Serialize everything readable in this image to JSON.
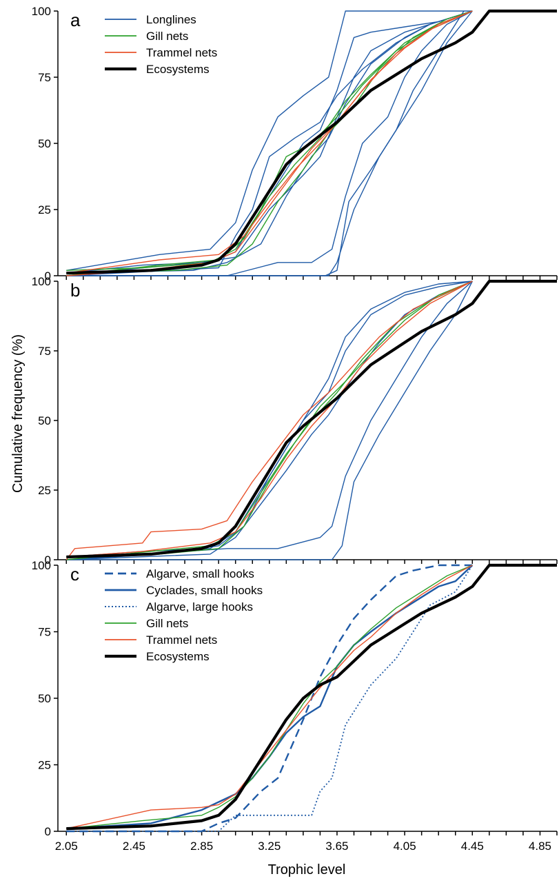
{
  "figure": {
    "ylabel": "Cumulative frequency (%)",
    "xlabel": "Trophic level",
    "x_ticks": [
      "2.05",
      "2.45",
      "2.85",
      "3.25",
      "3.65",
      "4.05",
      "4.45",
      "4.85"
    ]
  },
  "colors": {
    "longlines": "#1f5aa6",
    "gill_nets": "#2ca02c",
    "trammel_nets": "#e8522c",
    "ecosystems": "#000000"
  },
  "chart_data": [
    {
      "type": "line",
      "panel": "a",
      "xlim": [
        2.0,
        4.95
      ],
      "ylim": [
        0,
        100
      ],
      "yticks": [
        "0",
        "25",
        "50",
        "75",
        "100"
      ],
      "legend": [
        "Longlines",
        "Gill nets",
        "Trammel nets",
        "Ecosystems"
      ],
      "legend_position": "top-left",
      "series": [
        {
          "name": "Longlines",
          "style": "thin-blue",
          "x": [
            2.05,
            2.5,
            2.9,
            3.05,
            3.15,
            3.25,
            3.35,
            3.45,
            3.55,
            3.65,
            3.75,
            3.85,
            4.05,
            4.25,
            4.45
          ],
          "y": [
            1,
            4,
            5,
            9,
            20,
            30,
            40,
            50,
            55,
            70,
            90,
            92,
            94,
            96,
            100
          ]
        },
        {
          "name": "Longlines",
          "style": "thin-blue",
          "x": [
            2.05,
            2.5,
            2.85,
            3.05,
            3.25,
            3.45,
            3.55,
            3.65,
            3.75,
            3.85,
            4.05,
            4.25,
            4.45
          ],
          "y": [
            0,
            3,
            5,
            7,
            25,
            38,
            45,
            60,
            75,
            85,
            92,
            96,
            100
          ]
        },
        {
          "name": "Longlines",
          "style": "thin-blue",
          "x": [
            2.05,
            2.6,
            2.9,
            3.05,
            3.15,
            3.3,
            3.45,
            3.6,
            3.7,
            3.85,
            4.05,
            4.25,
            4.45
          ],
          "y": [
            2,
            8,
            10,
            20,
            40,
            60,
            68,
            75,
            100,
            100,
            100,
            100,
            100
          ]
        },
        {
          "name": "Longlines",
          "style": "thin-blue",
          "x": [
            2.05,
            2.8,
            3.0,
            3.2,
            3.35,
            3.5,
            3.6,
            3.7,
            3.85,
            4.05,
            4.2,
            4.45
          ],
          "y": [
            1,
            2,
            5,
            12,
            30,
            45,
            52,
            65,
            80,
            90,
            95,
            100
          ]
        },
        {
          "name": "Longlines",
          "style": "thin-blue",
          "x": [
            2.05,
            3.0,
            3.3,
            3.5,
            3.62,
            3.7,
            3.8,
            3.95,
            4.05,
            4.15,
            4.3,
            4.45
          ],
          "y": [
            0,
            0,
            5,
            5,
            10,
            30,
            50,
            60,
            75,
            85,
            95,
            100
          ]
        },
        {
          "name": "Longlines",
          "style": "thin-blue",
          "x": [
            2.05,
            3.1,
            3.4,
            3.6,
            3.65,
            3.75,
            3.9,
            4.0,
            4.1,
            4.25,
            4.4
          ],
          "y": [
            0,
            0,
            0,
            0,
            5,
            25,
            45,
            55,
            70,
            85,
            100
          ]
        },
        {
          "name": "Longlines",
          "style": "thin-blue",
          "x": [
            2.05,
            3.35,
            3.58,
            3.65,
            3.72,
            3.85,
            4.0,
            4.15,
            4.3,
            4.45
          ],
          "y": [
            0,
            0,
            0,
            2,
            28,
            40,
            55,
            70,
            88,
            100
          ]
        },
        {
          "name": "Longlines",
          "style": "thin-blue",
          "x": [
            2.05,
            2.95,
            3.05,
            3.15,
            3.25,
            3.4,
            3.55,
            3.65,
            3.8,
            4.0,
            4.2,
            4.45
          ],
          "y": [
            0,
            3,
            15,
            25,
            45,
            52,
            58,
            68,
            78,
            88,
            95,
            100
          ]
        },
        {
          "name": "Gill nets",
          "style": "thin-green",
          "x": [
            2.05,
            2.5,
            2.9,
            3.05,
            3.2,
            3.35,
            3.5,
            3.65,
            3.8,
            4.0,
            4.2,
            4.45
          ],
          "y": [
            2,
            3,
            5,
            10,
            25,
            45,
            50,
            60,
            72,
            85,
            93,
            100
          ]
        },
        {
          "name": "Gill nets",
          "style": "thin-green",
          "x": [
            2.05,
            2.6,
            2.95,
            3.1,
            3.25,
            3.4,
            3.55,
            3.7,
            3.85,
            4.05,
            4.25,
            4.45
          ],
          "y": [
            0,
            4,
            6,
            14,
            30,
            42,
            52,
            66,
            76,
            88,
            95,
            100
          ]
        },
        {
          "name": "Gill nets",
          "style": "thin-green",
          "x": [
            2.05,
            2.7,
            3.0,
            3.15,
            3.3,
            3.45,
            3.6,
            3.75,
            3.9,
            4.1,
            4.3,
            4.45
          ],
          "y": [
            1,
            2,
            4,
            12,
            28,
            40,
            54,
            64,
            78,
            90,
            97,
            100
          ]
        },
        {
          "name": "Trammel nets",
          "style": "thin-red",
          "x": [
            2.05,
            2.5,
            2.9,
            3.05,
            3.2,
            3.35,
            3.5,
            3.65,
            3.8,
            4.0,
            4.2,
            4.45
          ],
          "y": [
            0,
            2,
            5,
            9,
            22,
            35,
            48,
            58,
            70,
            84,
            93,
            100
          ]
        },
        {
          "name": "Trammel nets",
          "style": "thin-red",
          "x": [
            2.05,
            2.6,
            2.95,
            3.1,
            3.25,
            3.4,
            3.55,
            3.7,
            3.85,
            4.05,
            4.25,
            4.45
          ],
          "y": [
            1,
            6,
            8,
            15,
            28,
            40,
            50,
            62,
            74,
            86,
            95,
            100
          ]
        },
        {
          "name": "Ecosystems",
          "style": "thick-black",
          "x": [
            2.05,
            2.55,
            2.85,
            2.95,
            3.05,
            3.15,
            3.25,
            3.35,
            3.45,
            3.55,
            3.65,
            3.75,
            3.85,
            3.95,
            4.05,
            4.15,
            4.25,
            4.35,
            4.45,
            4.55,
            4.85,
            4.95
          ],
          "y": [
            1,
            2,
            4,
            6,
            12,
            22,
            32,
            42,
            48,
            53,
            58,
            64,
            70,
            74,
            78,
            82,
            85,
            88,
            92,
            100,
            100,
            100
          ]
        }
      ]
    },
    {
      "type": "line",
      "panel": "b",
      "xlim": [
        2.0,
        4.95
      ],
      "ylim": [
        0,
        100
      ],
      "yticks": [
        "0",
        "25",
        "50",
        "75",
        "100"
      ],
      "series": [
        {
          "name": "Longlines",
          "style": "thin-blue",
          "x": [
            2.05,
            2.5,
            2.9,
            3.05,
            3.2,
            3.35,
            3.5,
            3.6,
            3.7,
            3.85,
            4.05,
            4.25,
            4.45
          ],
          "y": [
            1,
            3,
            4,
            10,
            25,
            40,
            55,
            65,
            80,
            90,
            96,
            99,
            100
          ]
        },
        {
          "name": "Longlines",
          "style": "thin-blue",
          "x": [
            2.05,
            2.6,
            2.95,
            3.1,
            3.25,
            3.45,
            3.6,
            3.7,
            3.85,
            4.05,
            4.25,
            4.45
          ],
          "y": [
            0,
            2,
            5,
            12,
            30,
            50,
            60,
            75,
            88,
            95,
            98,
            100
          ]
        },
        {
          "name": "Longlines",
          "style": "thin-blue",
          "x": [
            2.05,
            3.0,
            3.3,
            3.55,
            3.62,
            3.7,
            3.85,
            4.0,
            4.15,
            4.3,
            4.45
          ],
          "y": [
            0,
            4,
            4,
            8,
            12,
            30,
            50,
            65,
            80,
            92,
            100
          ]
        },
        {
          "name": "Longlines",
          "style": "thin-blue",
          "x": [
            2.05,
            3.1,
            3.5,
            3.62,
            3.68,
            3.75,
            3.9,
            4.05,
            4.2,
            4.35,
            4.45
          ],
          "y": [
            0,
            0,
            0,
            0,
            5,
            28,
            45,
            60,
            75,
            88,
            100
          ]
        },
        {
          "name": "Longlines",
          "style": "thin-blue",
          "x": [
            2.05,
            2.9,
            3.05,
            3.2,
            3.35,
            3.5,
            3.6,
            3.75,
            3.9,
            4.05,
            4.25,
            4.45
          ],
          "y": [
            0,
            2,
            8,
            20,
            32,
            45,
            52,
            66,
            78,
            88,
            95,
            100
          ]
        },
        {
          "name": "Gill nets",
          "style": "thin-green",
          "x": [
            2.05,
            2.55,
            2.9,
            3.05,
            3.2,
            3.35,
            3.5,
            3.65,
            3.8,
            4.0,
            4.2,
            4.45
          ],
          "y": [
            0,
            3,
            5,
            10,
            24,
            38,
            50,
            60,
            72,
            85,
            93,
            100
          ]
        },
        {
          "name": "Gill nets",
          "style": "thin-green",
          "x": [
            2.05,
            2.6,
            2.95,
            3.1,
            3.25,
            3.4,
            3.55,
            3.7,
            3.85,
            4.05,
            4.25,
            4.45
          ],
          "y": [
            1,
            2,
            4,
            12,
            28,
            42,
            55,
            64,
            74,
            86,
            95,
            100
          ]
        },
        {
          "name": "Trammel nets",
          "style": "thin-red",
          "x": [
            2.05,
            2.1,
            2.5,
            2.55,
            2.85,
            3.0,
            3.15,
            3.3,
            3.45,
            3.6,
            3.75,
            3.9,
            4.1,
            4.3,
            4.45
          ],
          "y": [
            0,
            4,
            6,
            10,
            11,
            14,
            28,
            40,
            52,
            60,
            70,
            80,
            90,
            96,
            100
          ]
        },
        {
          "name": "Trammel nets",
          "style": "thin-red",
          "x": [
            2.05,
            2.5,
            2.9,
            3.05,
            3.2,
            3.35,
            3.5,
            3.65,
            3.8,
            4.0,
            4.2,
            4.45
          ],
          "y": [
            1,
            3,
            6,
            10,
            22,
            36,
            48,
            58,
            70,
            82,
            92,
            100
          ]
        },
        {
          "name": "Ecosystems",
          "style": "thick-black",
          "x": [
            2.05,
            2.55,
            2.85,
            2.95,
            3.05,
            3.15,
            3.25,
            3.35,
            3.45,
            3.55,
            3.65,
            3.75,
            3.85,
            3.95,
            4.05,
            4.15,
            4.25,
            4.35,
            4.45,
            4.55,
            4.85,
            4.95
          ],
          "y": [
            1,
            2,
            4,
            6,
            12,
            22,
            32,
            42,
            48,
            53,
            58,
            64,
            70,
            74,
            78,
            82,
            85,
            88,
            92,
            100,
            100,
            100
          ]
        }
      ]
    },
    {
      "type": "line",
      "panel": "c",
      "xlim": [
        2.0,
        4.95
      ],
      "ylim": [
        0,
        100
      ],
      "yticks": [
        "0",
        "25",
        "50",
        "75",
        "100"
      ],
      "legend": [
        "Algarve, small hooks",
        "Cyclades, small hooks",
        "Algarve, large hooks",
        "Gill nets",
        "Trammel nets",
        "Ecosystems"
      ],
      "legend_position": "top-left",
      "series": [
        {
          "name": "Algarve, small hooks",
          "style": "dashed-blue",
          "x": [
            2.05,
            2.85,
            2.95,
            3.05,
            3.2,
            3.3,
            3.45,
            3.55,
            3.65,
            3.75,
            3.85,
            4.0,
            4.1,
            4.25,
            4.45
          ],
          "y": [
            0,
            0,
            3,
            5,
            15,
            20,
            42,
            58,
            70,
            80,
            87,
            96,
            98,
            100,
            100
          ]
        },
        {
          "name": "Cyclades, small hooks",
          "style": "solid-blue",
          "x": [
            2.05,
            2.55,
            2.85,
            2.95,
            3.05,
            3.15,
            3.25,
            3.35,
            3.45,
            3.55,
            3.65,
            3.75,
            3.85,
            4.0,
            4.15,
            4.25,
            4.35,
            4.45
          ],
          "y": [
            1,
            3,
            8,
            11,
            14,
            20,
            28,
            37,
            43,
            47,
            62,
            70,
            75,
            82,
            88,
            92,
            94,
            100
          ]
        },
        {
          "name": "Algarve, large hooks",
          "style": "dotted-blue",
          "x": [
            2.05,
            2.95,
            3.05,
            3.4,
            3.5,
            3.55,
            3.62,
            3.7,
            3.75,
            3.85,
            4.0,
            4.1,
            4.2,
            4.35,
            4.45
          ],
          "y": [
            0,
            0,
            6,
            6,
            6,
            15,
            20,
            40,
            45,
            55,
            65,
            75,
            85,
            90,
            100
          ]
        },
        {
          "name": "Gill nets",
          "style": "thin-green",
          "x": [
            2.05,
            2.5,
            2.85,
            2.95,
            3.05,
            3.15,
            3.25,
            3.35,
            3.45,
            3.55,
            3.65,
            3.75,
            3.85,
            4.0,
            4.15,
            4.3,
            4.45
          ],
          "y": [
            1,
            4,
            6,
            9,
            13,
            20,
            28,
            38,
            48,
            56,
            62,
            70,
            76,
            84,
            90,
            96,
            100
          ]
        },
        {
          "name": "Trammel nets",
          "style": "thin-red",
          "x": [
            2.05,
            2.55,
            2.85,
            2.95,
            3.05,
            3.15,
            3.25,
            3.35,
            3.45,
            3.55,
            3.65,
            3.75,
            3.85,
            4.0,
            4.15,
            4.3,
            4.45
          ],
          "y": [
            1,
            8,
            9,
            10,
            14,
            22,
            30,
            38,
            46,
            54,
            61,
            68,
            73,
            82,
            89,
            95,
            100
          ]
        },
        {
          "name": "Ecosystems",
          "style": "thick-black",
          "x": [
            2.05,
            2.55,
            2.85,
            2.95,
            3.05,
            3.15,
            3.25,
            3.35,
            3.45,
            3.55,
            3.65,
            3.75,
            3.85,
            3.95,
            4.05,
            4.15,
            4.25,
            4.35,
            4.45,
            4.55,
            4.85,
            4.95
          ],
          "y": [
            1,
            2,
            4,
            6,
            12,
            22,
            32,
            42,
            50,
            55,
            58,
            64,
            70,
            74,
            78,
            82,
            85,
            88,
            92,
            100,
            100,
            100
          ]
        }
      ]
    }
  ]
}
